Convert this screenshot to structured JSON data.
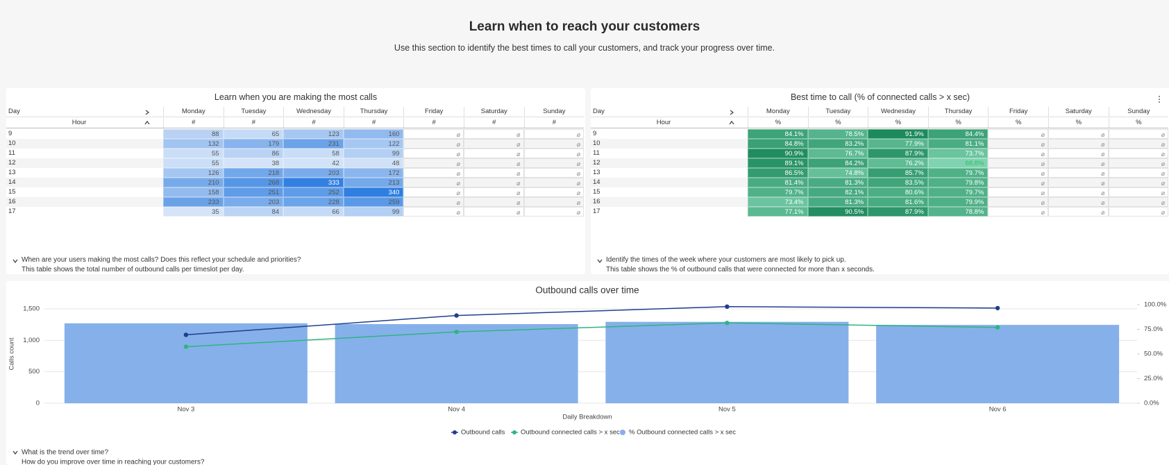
{
  "header": {
    "title": "Learn when to reach your customers",
    "subtitle": "Use this section to identify the best times to call your customers, and track your progress over time."
  },
  "tables": [
    {
      "title": "Learn when you are making the most calls",
      "row_header": "Day",
      "column_header": "Hour",
      "columns": [
        "Monday",
        "Tuesday",
        "Wednesday",
        "Thursday",
        "Friday",
        "Saturday",
        "Sunday"
      ],
      "units": [
        "#",
        "#",
        "#",
        "#",
        "#",
        "#",
        "#"
      ],
      "rows": [
        9,
        10,
        11,
        12,
        13,
        14,
        15,
        16,
        17
      ],
      "values": [
        [
          88,
          65,
          123,
          160,
          null,
          null,
          null
        ],
        [
          132,
          179,
          231,
          122,
          null,
          null,
          null
        ],
        [
          55,
          86,
          58,
          99,
          null,
          null,
          null
        ],
        [
          55,
          38,
          42,
          48,
          null,
          null,
          null
        ],
        [
          126,
          218,
          203,
          172,
          null,
          null,
          null
        ],
        [
          210,
          268,
          333,
          213,
          null,
          null,
          null
        ],
        [
          158,
          251,
          252,
          340,
          null,
          null,
          null
        ],
        [
          233,
          203,
          228,
          259,
          null,
          null,
          null
        ],
        [
          35,
          84,
          66,
          99,
          null,
          null,
          null
        ]
      ],
      "empty_symbol": "⌀",
      "color_low": "#e9f0fb",
      "color_high": "#2f7ee0",
      "footnote": [
        "When are your users making the most calls? Does this reflect your schedule and priorities?",
        "This table shows the total number of outbound calls per timeslot per day."
      ]
    },
    {
      "title": "Best time to call (% of connected calls > x sec)",
      "row_header": "Day",
      "column_header": "Hour",
      "columns": [
        "Monday",
        "Tuesday",
        "Wednesday",
        "Thursday",
        "Friday",
        "Saturday",
        "Sunday"
      ],
      "units": [
        "%",
        "%",
        "%",
        "%",
        "%",
        "%",
        "%"
      ],
      "rows": [
        9,
        10,
        11,
        12,
        13,
        14,
        15,
        16,
        17
      ],
      "values": [
        [
          84.1,
          78.5,
          91.9,
          84.4,
          null,
          null,
          null
        ],
        [
          84.8,
          83.2,
          77.9,
          81.1,
          null,
          null,
          null
        ],
        [
          90.9,
          76.7,
          87.9,
          73.7,
          null,
          null,
          null
        ],
        [
          89.1,
          84.2,
          76.2,
          68.8,
          null,
          null,
          null
        ],
        [
          86.5,
          74.8,
          85.7,
          79.7,
          null,
          null,
          null
        ],
        [
          81.4,
          81.3,
          83.5,
          79.8,
          null,
          null,
          null
        ],
        [
          79.7,
          82.1,
          80.6,
          79.7,
          null,
          null,
          null
        ],
        [
          73.4,
          81.3,
          81.6,
          79.9,
          null,
          null,
          null
        ],
        [
          77.1,
          90.5,
          87.9,
          78.8,
          null,
          null,
          null
        ]
      ],
      "value_labels": [
        [
          "84.1%",
          "78.5%",
          "91.9%",
          "84.4%",
          null,
          null,
          null
        ],
        [
          "84.8%",
          "83.2%",
          "77.9%",
          "81.1%",
          null,
          null,
          null
        ],
        [
          "90.9%",
          "76.7%",
          "87.9%",
          "73.7%",
          null,
          null,
          null
        ],
        [
          "89.1%",
          "84.2%",
          "76.2%",
          "68.8%",
          null,
          null,
          null
        ],
        [
          "86.5%",
          "74.8%",
          "85.7%",
          "79.7%",
          null,
          null,
          null
        ],
        [
          "81.4%",
          "81.3%",
          "83.5%",
          "79.8%",
          null,
          null,
          null
        ],
        [
          "79.7%",
          "82.1%",
          "80.6%",
          "79.7%",
          null,
          null,
          null
        ],
        [
          "73.4%",
          "81.3%",
          "81.6%",
          "79.9%",
          null,
          null,
          null
        ],
        [
          "77.1%",
          "90.5%",
          "87.9%",
          "78.8%",
          null,
          null,
          null
        ]
      ],
      "empty_symbol": "⌀",
      "color_low": "#7fd3b0",
      "color_high": "#1c8a5c",
      "footnote": [
        "Identify the times of the week where your customers are most likely to pick up.",
        "This table shows the % of outbound calls that were connected for more than x seconds."
      ]
    }
  ],
  "chart_data": {
    "type": "combo",
    "title": "Outbound calls over time",
    "categories": [
      "Nov 3",
      "Nov 4",
      "Nov 5",
      "Nov 6"
    ],
    "series": [
      {
        "name": "% Outbound connected calls > x sec",
        "type": "bar",
        "axis": "y2",
        "color": "#86b0ea",
        "values": [
          81.1,
          80.3,
          82.6,
          79.5
        ]
      },
      {
        "name": "Outbound calls",
        "type": "line",
        "color": "#1e3f8f",
        "values": [
          1087,
          1394,
          1535,
          1512
        ]
      },
      {
        "name": "Outbound connected calls > x sec",
        "type": "line",
        "color": "#2db57f",
        "values": [
          898,
          1134,
          1276,
          1205
        ]
      }
    ],
    "legend_order": [
      1,
      2,
      0
    ],
    "x_label": "Daily Breakdown",
    "y_label": "Calls count",
    "ylim": [
      0,
      1566
    ],
    "yticks": [
      0,
      500,
      {
        "value": 1000,
        "label": "1,000"
      },
      {
        "value": 1500,
        "label": "1,500"
      }
    ],
    "y2lim": [
      0,
      100
    ],
    "y2ticks": [
      {
        "value": 0,
        "label": "0.0%"
      },
      {
        "value": 25,
        "label": "25.0%"
      },
      {
        "value": 50,
        "label": "50.0%"
      },
      {
        "value": 75,
        "label": "75.0%"
      },
      {
        "value": 100,
        "label": "100.0%"
      }
    ],
    "grid": true,
    "footnote": [
      "What is the trend over time?",
      "How do you improve over time in reaching your customers?"
    ]
  }
}
